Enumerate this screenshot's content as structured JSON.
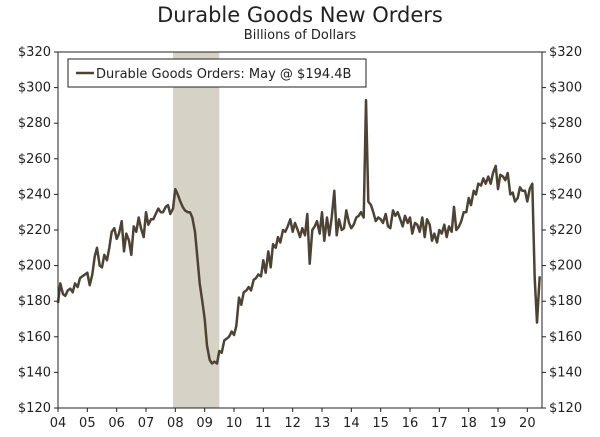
{
  "chart_data": {
    "type": "line",
    "title": "Durable Goods New Orders",
    "subtitle": "Billions of Dollars",
    "xlabel": "",
    "ylabel": "",
    "xlim": [
      2004.0,
      2020.5
    ],
    "ylim": [
      120,
      320
    ],
    "y_ticks": [
      "$120",
      "$140",
      "$160",
      "$180",
      "$200",
      "$220",
      "$240",
      "$260",
      "$280",
      "$300",
      "$320"
    ],
    "y_tick_values": [
      120,
      140,
      160,
      180,
      200,
      220,
      240,
      260,
      280,
      300,
      320
    ],
    "x_ticks": [
      "04",
      "05",
      "06",
      "07",
      "08",
      "09",
      "10",
      "11",
      "12",
      "13",
      "14",
      "15",
      "16",
      "17",
      "18",
      "19",
      "20"
    ],
    "x_tick_values": [
      2004,
      2005,
      2006,
      2007,
      2008,
      2009,
      2010,
      2011,
      2012,
      2013,
      2014,
      2015,
      2016,
      2017,
      2018,
      2019,
      2020
    ],
    "grid": false,
    "legend_position": "top-left",
    "recession_shading": [
      2007.92,
      2009.5
    ],
    "recession_color": "#d6d2c6",
    "line_color": "#4d4334",
    "series": [
      {
        "name": "Durable Goods Orders: May @ $194.4B",
        "points": [
          [
            2004.0,
            179
          ],
          [
            2004.08,
            190
          ],
          [
            2004.17,
            184
          ],
          [
            2004.25,
            183
          ],
          [
            2004.33,
            186
          ],
          [
            2004.42,
            187
          ],
          [
            2004.5,
            185
          ],
          [
            2004.58,
            190
          ],
          [
            2004.67,
            188
          ],
          [
            2004.75,
            193
          ],
          [
            2004.83,
            194
          ],
          [
            2004.92,
            195
          ],
          [
            2005.0,
            196
          ],
          [
            2005.08,
            189
          ],
          [
            2005.17,
            195
          ],
          [
            2005.25,
            205
          ],
          [
            2005.33,
            210
          ],
          [
            2005.42,
            200
          ],
          [
            2005.5,
            199
          ],
          [
            2005.58,
            206
          ],
          [
            2005.67,
            203
          ],
          [
            2005.75,
            210
          ],
          [
            2005.83,
            219
          ],
          [
            2005.92,
            221
          ],
          [
            2006.0,
            215
          ],
          [
            2006.08,
            218
          ],
          [
            2006.17,
            225
          ],
          [
            2006.25,
            208
          ],
          [
            2006.33,
            218
          ],
          [
            2006.42,
            214
          ],
          [
            2006.5,
            206
          ],
          [
            2006.58,
            222
          ],
          [
            2006.67,
            219
          ],
          [
            2006.75,
            227
          ],
          [
            2006.83,
            221
          ],
          [
            2006.92,
            216
          ],
          [
            2007.0,
            230
          ],
          [
            2007.08,
            223
          ],
          [
            2007.17,
            226
          ],
          [
            2007.25,
            226
          ],
          [
            2007.33,
            229
          ],
          [
            2007.42,
            232
          ],
          [
            2007.5,
            230
          ],
          [
            2007.58,
            230
          ],
          [
            2007.67,
            233
          ],
          [
            2007.75,
            234
          ],
          [
            2007.83,
            229
          ],
          [
            2007.92,
            232
          ],
          [
            2008.0,
            243
          ],
          [
            2008.08,
            240
          ],
          [
            2008.17,
            236
          ],
          [
            2008.25,
            233
          ],
          [
            2008.33,
            231
          ],
          [
            2008.42,
            230
          ],
          [
            2008.5,
            230
          ],
          [
            2008.58,
            227
          ],
          [
            2008.67,
            219
          ],
          [
            2008.75,
            205
          ],
          [
            2008.83,
            190
          ],
          [
            2008.92,
            180
          ],
          [
            2009.0,
            170
          ],
          [
            2009.08,
            155
          ],
          [
            2009.17,
            147
          ],
          [
            2009.25,
            145
          ],
          [
            2009.33,
            146
          ],
          [
            2009.42,
            145
          ],
          [
            2009.5,
            152
          ],
          [
            2009.58,
            151
          ],
          [
            2009.67,
            158
          ],
          [
            2009.75,
            159
          ],
          [
            2009.83,
            160
          ],
          [
            2009.92,
            163
          ],
          [
            2010.0,
            161
          ],
          [
            2010.08,
            166
          ],
          [
            2010.17,
            182
          ],
          [
            2010.25,
            178
          ],
          [
            2010.33,
            185
          ],
          [
            2010.42,
            186
          ],
          [
            2010.5,
            188
          ],
          [
            2010.58,
            186
          ],
          [
            2010.67,
            192
          ],
          [
            2010.75,
            193
          ],
          [
            2010.83,
            195
          ],
          [
            2010.92,
            194
          ],
          [
            2011.0,
            203
          ],
          [
            2011.08,
            196
          ],
          [
            2011.17,
            208
          ],
          [
            2011.25,
            199
          ],
          [
            2011.33,
            212
          ],
          [
            2011.42,
            210
          ],
          [
            2011.5,
            216
          ],
          [
            2011.58,
            213
          ],
          [
            2011.67,
            220
          ],
          [
            2011.75,
            219
          ],
          [
            2011.83,
            222
          ],
          [
            2011.92,
            226
          ],
          [
            2012.0,
            219
          ],
          [
            2012.08,
            224
          ],
          [
            2012.17,
            220
          ],
          [
            2012.25,
            216
          ],
          [
            2012.33,
            221
          ],
          [
            2012.42,
            217
          ],
          [
            2012.5,
            229
          ],
          [
            2012.58,
            201
          ],
          [
            2012.67,
            220
          ],
          [
            2012.75,
            222
          ],
          [
            2012.83,
            225
          ],
          [
            2012.92,
            218
          ],
          [
            2013.0,
            230
          ],
          [
            2013.08,
            214
          ],
          [
            2013.17,
            227
          ],
          [
            2013.25,
            217
          ],
          [
            2013.33,
            227
          ],
          [
            2013.42,
            242
          ],
          [
            2013.5,
            217
          ],
          [
            2013.58,
            226
          ],
          [
            2013.67,
            220
          ],
          [
            2013.75,
            221
          ],
          [
            2013.83,
            231
          ],
          [
            2013.92,
            224
          ],
          [
            2014.0,
            221
          ],
          [
            2014.08,
            223
          ],
          [
            2014.17,
            227
          ],
          [
            2014.25,
            228
          ],
          [
            2014.33,
            230
          ],
          [
            2014.42,
            227
          ],
          [
            2014.5,
            293
          ],
          [
            2014.58,
            236
          ],
          [
            2014.67,
            234
          ],
          [
            2014.75,
            230
          ],
          [
            2014.83,
            225
          ],
          [
            2014.92,
            227
          ],
          [
            2015.0,
            226
          ],
          [
            2015.08,
            224
          ],
          [
            2015.17,
            229
          ],
          [
            2015.25,
            222
          ],
          [
            2015.33,
            221
          ],
          [
            2015.42,
            231
          ],
          [
            2015.5,
            228
          ],
          [
            2015.58,
            230
          ],
          [
            2015.67,
            226
          ],
          [
            2015.75,
            222
          ],
          [
            2015.83,
            228
          ],
          [
            2015.92,
            224
          ],
          [
            2016.0,
            227
          ],
          [
            2016.08,
            218
          ],
          [
            2016.17,
            224
          ],
          [
            2016.25,
            223
          ],
          [
            2016.33,
            219
          ],
          [
            2016.42,
            227
          ],
          [
            2016.5,
            216
          ],
          [
            2016.58,
            226
          ],
          [
            2016.67,
            223
          ],
          [
            2016.75,
            214
          ],
          [
            2016.83,
            218
          ],
          [
            2016.92,
            213
          ],
          [
            2017.0,
            220
          ],
          [
            2017.08,
            218
          ],
          [
            2017.17,
            223
          ],
          [
            2017.25,
            216
          ],
          [
            2017.33,
            222
          ],
          [
            2017.42,
            219
          ],
          [
            2017.5,
            233
          ],
          [
            2017.58,
            220
          ],
          [
            2017.67,
            222
          ],
          [
            2017.75,
            225
          ],
          [
            2017.83,
            230
          ],
          [
            2017.92,
            230
          ],
          [
            2018.0,
            238
          ],
          [
            2018.08,
            234
          ],
          [
            2018.17,
            242
          ],
          [
            2018.25,
            240
          ],
          [
            2018.33,
            246
          ],
          [
            2018.42,
            245
          ],
          [
            2018.5,
            249
          ],
          [
            2018.58,
            246
          ],
          [
            2018.67,
            250
          ],
          [
            2018.75,
            246
          ],
          [
            2018.83,
            252
          ],
          [
            2018.92,
            256
          ],
          [
            2019.0,
            243
          ],
          [
            2019.08,
            251
          ],
          [
            2019.17,
            250
          ],
          [
            2019.25,
            248
          ],
          [
            2019.33,
            252
          ],
          [
            2019.42,
            240
          ],
          [
            2019.5,
            241
          ],
          [
            2019.58,
            236
          ],
          [
            2019.67,
            238
          ],
          [
            2019.75,
            244
          ],
          [
            2019.83,
            242
          ],
          [
            2019.92,
            242
          ],
          [
            2020.0,
            236
          ],
          [
            2020.08,
            243
          ],
          [
            2020.17,
            246
          ],
          [
            2020.25,
            193
          ],
          [
            2020.33,
            168
          ],
          [
            2020.42,
            194
          ]
        ]
      }
    ]
  }
}
